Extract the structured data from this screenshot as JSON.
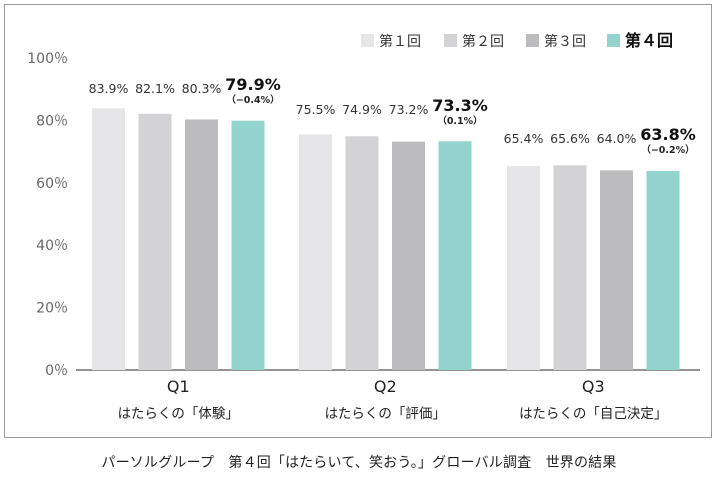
{
  "chart_data": {
    "type": "bar",
    "ylim": [
      0,
      100
    ],
    "yticks": [
      0,
      20,
      40,
      60,
      80,
      100
    ],
    "ytick_labels": [
      "0％",
      "20％",
      "40％",
      "60％",
      "80％",
      "100％"
    ],
    "legend_position": "top-right",
    "categories": [
      {
        "code": "Q1",
        "label": "はたらくの「体験」"
      },
      {
        "code": "Q2",
        "label": "はたらくの「評価」"
      },
      {
        "code": "Q3",
        "label": "はたらくの「自己決定」"
      }
    ],
    "series": [
      {
        "name": "第１回",
        "color": "#e6e6e8",
        "values": [
          83.9,
          75.5,
          65.4
        ],
        "labels": [
          "83.9%",
          "75.5%",
          "65.4%"
        ]
      },
      {
        "name": "第２回",
        "color": "#d3d3d5",
        "values": [
          82.1,
          74.9,
          65.6
        ],
        "labels": [
          "82.1%",
          "74.9%",
          "65.6%"
        ]
      },
      {
        "name": "第３回",
        "color": "#bcbcbe",
        "values": [
          80.3,
          73.2,
          64.0
        ],
        "labels": [
          "80.3%",
          "73.2%",
          "64.0%"
        ]
      },
      {
        "name": "第４回",
        "color": "#93d3cd",
        "values": [
          79.9,
          73.3,
          63.8
        ],
        "labels": [
          "79.9%",
          "73.3%",
          "63.8%"
        ],
        "changes": [
          "（−0.4%）",
          "（0.1%）",
          "（−0.2%）"
        ]
      }
    ]
  },
  "caption": "パーソルグループ　第４回「はたらいて、笑おう。」グローバル調査　世界の結果"
}
